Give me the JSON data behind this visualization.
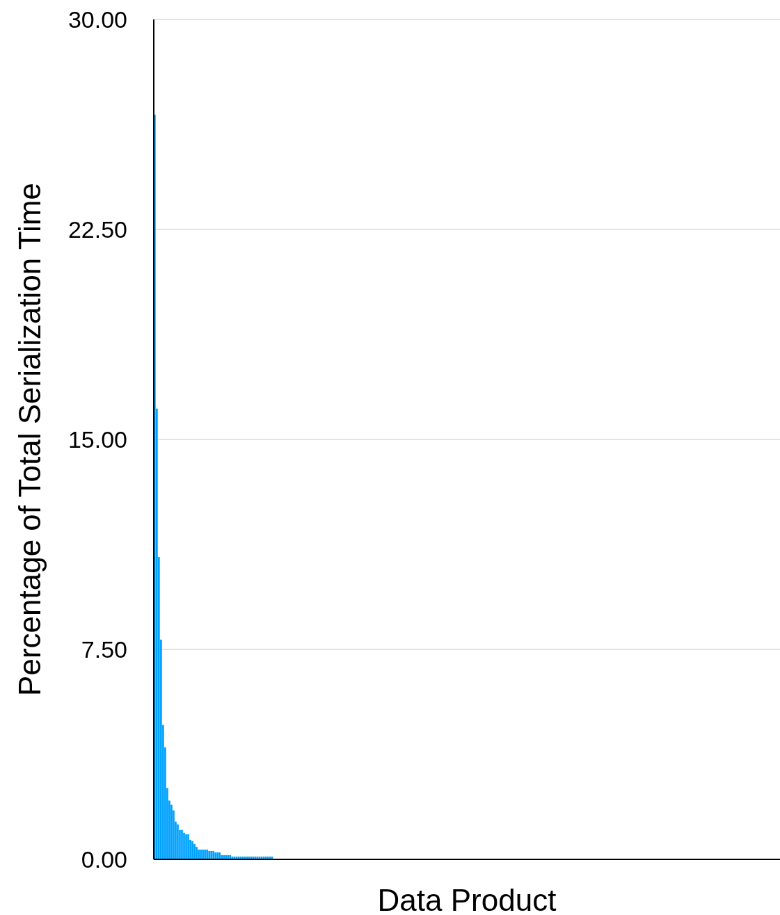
{
  "chart_data": {
    "type": "bar",
    "xlabel": "Data Product",
    "ylabel": "Percentage of Total Serialization Time",
    "categories": [
      null,
      null,
      null,
      null,
      null,
      null,
      null,
      null,
      null,
      null,
      null,
      null,
      null,
      null,
      null,
      null,
      null,
      null,
      null,
      null,
      null,
      null,
      null,
      null,
      null,
      null,
      null,
      null,
      null,
      null,
      null,
      null,
      null,
      null,
      null,
      null,
      null,
      null,
      null,
      null,
      null,
      null,
      null,
      null,
      null,
      null,
      null,
      null,
      null,
      null,
      null,
      null,
      null,
      null,
      null,
      null,
      null,
      null,
      null,
      null,
      null,
      null,
      null,
      null,
      null,
      null,
      null,
      null,
      null,
      null,
      null,
      null,
      null,
      null,
      null,
      null,
      null,
      null,
      null,
      null,
      null,
      null,
      null,
      null,
      null,
      null,
      null,
      null,
      null,
      null,
      null,
      null,
      null,
      null,
      null,
      null,
      null,
      null,
      null,
      null,
      null,
      null,
      null,
      null,
      null,
      null,
      null,
      null,
      null,
      null,
      null,
      null,
      null,
      null,
      null,
      null,
      null,
      null,
      null,
      null,
      null,
      null,
      null,
      null,
      null,
      null,
      null,
      null,
      null,
      null,
      null,
      null,
      null,
      null,
      null,
      null,
      null,
      null,
      null,
      null,
      null,
      null,
      null,
      null,
      null,
      null,
      null,
      null,
      null,
      null,
      null,
      null,
      null,
      null,
      null,
      null,
      null,
      null,
      null,
      null,
      null,
      null,
      null,
      null,
      null,
      null,
      null,
      null,
      null,
      null,
      null,
      null,
      null,
      null,
      null,
      null,
      null,
      null,
      null,
      null,
      null,
      null,
      null,
      null,
      null,
      null,
      null,
      null,
      null,
      null,
      null,
      null,
      null,
      null,
      null,
      null,
      null,
      null,
      null,
      null,
      null,
      null,
      null,
      null,
      null,
      null,
      null,
      null,
      null,
      null,
      null,
      null,
      null,
      null,
      null,
      null,
      null,
      null,
      null,
      null,
      null,
      null,
      null,
      null,
      null,
      null,
      null,
      null,
      null,
      null,
      null,
      null,
      null,
      null,
      null,
      null,
      null,
      null,
      null,
      null,
      null,
      null,
      null,
      null,
      null,
      null,
      null,
      null,
      null,
      null,
      null,
      null,
      null,
      null,
      null,
      null,
      null,
      null,
      null,
      null,
      null,
      null,
      null,
      null,
      null,
      null,
      null,
      null,
      null,
      null,
      null,
      null,
      null,
      null,
      null,
      null,
      null,
      null,
      null,
      null,
      null,
      null,
      null,
      null,
      null,
      null,
      null,
      null,
      null,
      null,
      null,
      null,
      null,
      null,
      null,
      null,
      null,
      null,
      null
    ],
    "values": [
      26.6,
      16.1,
      10.8,
      7.85,
      4.8,
      4.0,
      2.55,
      2.1,
      1.95,
      1.75,
      1.35,
      1.25,
      1.05,
      1.05,
      0.95,
      0.9,
      0.9,
      0.7,
      0.65,
      0.55,
      0.45,
      0.35,
      0.35,
      0.35,
      0.35,
      0.35,
      0.3,
      0.3,
      0.3,
      0.25,
      0.25,
      0.25,
      0.15,
      0.15,
      0.15,
      0.15,
      0.15,
      0.1,
      0.1,
      0.1,
      0.1,
      0.1,
      0.1,
      0.1,
      0.1,
      0.1,
      0.1,
      0.1,
      0.1,
      0.1,
      0.1,
      0.1,
      0.1,
      0.1,
      0.1,
      0.1,
      0.1,
      0,
      0,
      0,
      0,
      0,
      0,
      0,
      0,
      0,
      0,
      0,
      0,
      0,
      0,
      0,
      0,
      0,
      0,
      0,
      0,
      0,
      0,
      0,
      0,
      0,
      0,
      0,
      0,
      0,
      0,
      0,
      0,
      0,
      0,
      0,
      0,
      0,
      0,
      0,
      0,
      0,
      0,
      0,
      0,
      0,
      0,
      0,
      0,
      0,
      0,
      0,
      0,
      0,
      0,
      0,
      0,
      0,
      0,
      0,
      0,
      0,
      0,
      0,
      0,
      0,
      0,
      0,
      0,
      0,
      0,
      0,
      0,
      0,
      0,
      0,
      0,
      0,
      0,
      0,
      0,
      0,
      0,
      0,
      0,
      0,
      0,
      0,
      0,
      0,
      0,
      0,
      0,
      0,
      0,
      0,
      0,
      0,
      0,
      0,
      0,
      0,
      0,
      0,
      0,
      0,
      0,
      0,
      0,
      0,
      0,
      0,
      0,
      0,
      0,
      0,
      0,
      0,
      0,
      0,
      0,
      0,
      0,
      0,
      0,
      0,
      0,
      0,
      0,
      0,
      0,
      0,
      0,
      0,
      0,
      0,
      0,
      0,
      0,
      0,
      0,
      0,
      0,
      0,
      0,
      0,
      0,
      0,
      0,
      0,
      0,
      0,
      0,
      0,
      0,
      0,
      0,
      0,
      0,
      0,
      0,
      0,
      0,
      0,
      0,
      0,
      0,
      0,
      0,
      0,
      0,
      0,
      0,
      0,
      0,
      0,
      0,
      0,
      0,
      0,
      0,
      0,
      0,
      0,
      0,
      0,
      0,
      0,
      0,
      0,
      0,
      0,
      0,
      0,
      0,
      0,
      0,
      0,
      0,
      0,
      0,
      0,
      0,
      0,
      0,
      0,
      0,
      0,
      0,
      0,
      0,
      0,
      0,
      0,
      0,
      0,
      0,
      0,
      0,
      0,
      0,
      0,
      0,
      0,
      0,
      0,
      0,
      0,
      0,
      0,
      0,
      0,
      0,
      0,
      0,
      0,
      0,
      0,
      0,
      0,
      0,
      0,
      0
    ],
    "color": "#00a2ff",
    "ylim": [
      0,
      30
    ],
    "yticks": [
      {
        "value": 0,
        "label": "0.00"
      },
      {
        "value": 7.5,
        "label": "7.50"
      },
      {
        "value": 15,
        "label": "15.00"
      },
      {
        "value": 22.5,
        "label": "22.50"
      },
      {
        "value": 30,
        "label": "30.00"
      }
    ],
    "grid": "y",
    "tick_labels": "y"
  }
}
